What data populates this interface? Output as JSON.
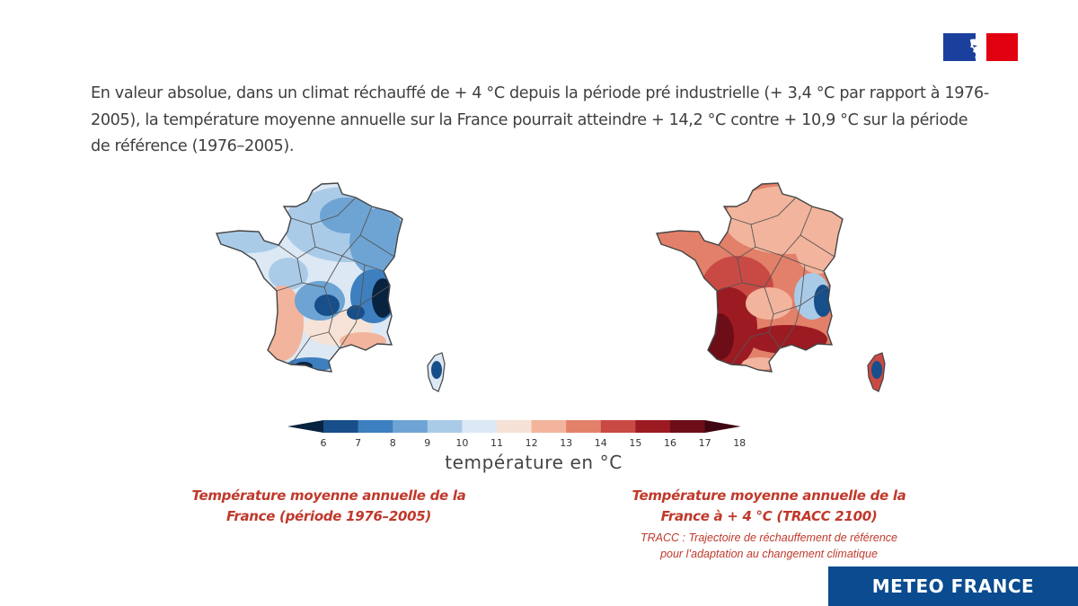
{
  "header": {
    "logo": "republique-francaise-logo",
    "intro_text": "En valeur absolue, dans un climat réchauffé de + 4 °C depuis la période pré industrielle (+ 3,4 °C par rapport à 1976-2005), la température moyenne annuelle sur la France pourrait atteindre + 14,2 °C contre + 10,9 °C sur la période de référence (1976–2005)."
  },
  "maps": [
    {
      "caption_line1": "Température moyenne annuelle de la",
      "caption_line2": "France (période 1976–2005)",
      "mean_temperature_c": 10.9
    },
    {
      "caption_line1": "Température moyenne annuelle de la",
      "caption_line2": "France à + 4 °C (TRACC 2100)",
      "mean_temperature_c": 14.2,
      "note_line1": "TRACC : Trajectoire de réchauffement de référence",
      "note_line2": "pour l’adaptation au changement climatique"
    }
  ],
  "legend": {
    "title": "température en °C",
    "ticks": [
      "6",
      "7",
      "8",
      "9",
      "10",
      "11",
      "12",
      "13",
      "14",
      "15",
      "16",
      "17",
      "18"
    ],
    "colors": [
      "#08233f",
      "#174f8a",
      "#3d7fbf",
      "#6ea4d4",
      "#a9cbe8",
      "#dce8f4",
      "#f6e2d6",
      "#f2b49c",
      "#e2806a",
      "#c94a44",
      "#9c1a22",
      "#6d0d18",
      "#3f0510"
    ]
  },
  "brand": {
    "label": "METEO FRANCE",
    "color": "#0b4b8f"
  }
}
